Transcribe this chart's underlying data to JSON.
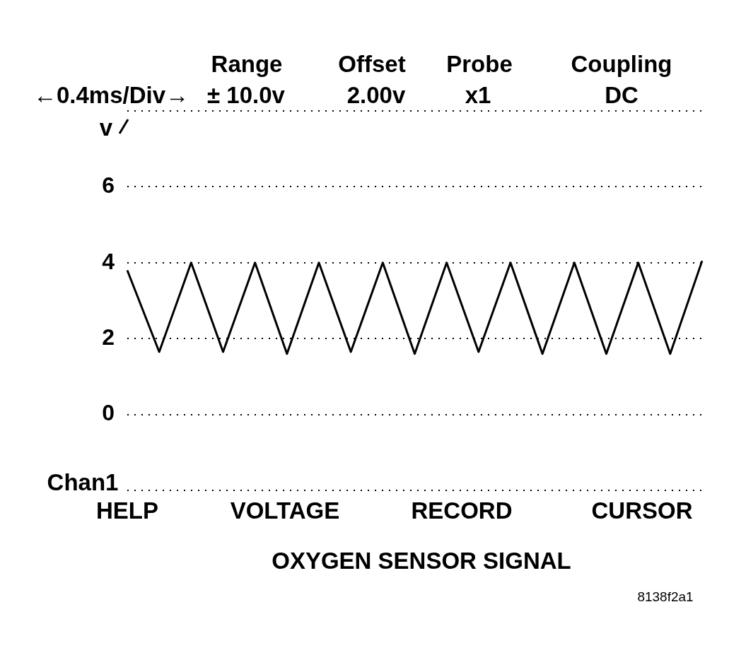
{
  "chart_data": {
    "type": "line",
    "title": "OXYGEN SENSOR SIGNAL",
    "ylabel": "v",
    "annotations": [
      "Range",
      "Offset",
      "Probe",
      "Coupling",
      "←0.4ms/Div→",
      "± 10.0v",
      "2.00v",
      "x1",
      "DC",
      "HELP",
      "VOLTAGE",
      "RECORD",
      "CURSOR",
      "8138f2a1",
      "Chan1"
    ],
    "categories": [
      null,
      null,
      null,
      null,
      null,
      null,
      null,
      null,
      null,
      null,
      null,
      null,
      null,
      null,
      null,
      null,
      null,
      null,
      null
    ],
    "series": [
      {
        "color": "#000000",
        "values": [
          3.8,
          1.65,
          4.0,
          1.65,
          4.0,
          1.6,
          4.0,
          1.65,
          4.0,
          1.6,
          4.0,
          1.65,
          4.0,
          1.6,
          4.0,
          1.6,
          4.0,
          1.6,
          4.05
        ]
      }
    ],
    "ylim": [
      -2,
      8
    ],
    "yticks": [
      0,
      2,
      4,
      6
    ],
    "grid": "y",
    "legend": false,
    "marker": "none",
    "line_style": "solid"
  }
}
